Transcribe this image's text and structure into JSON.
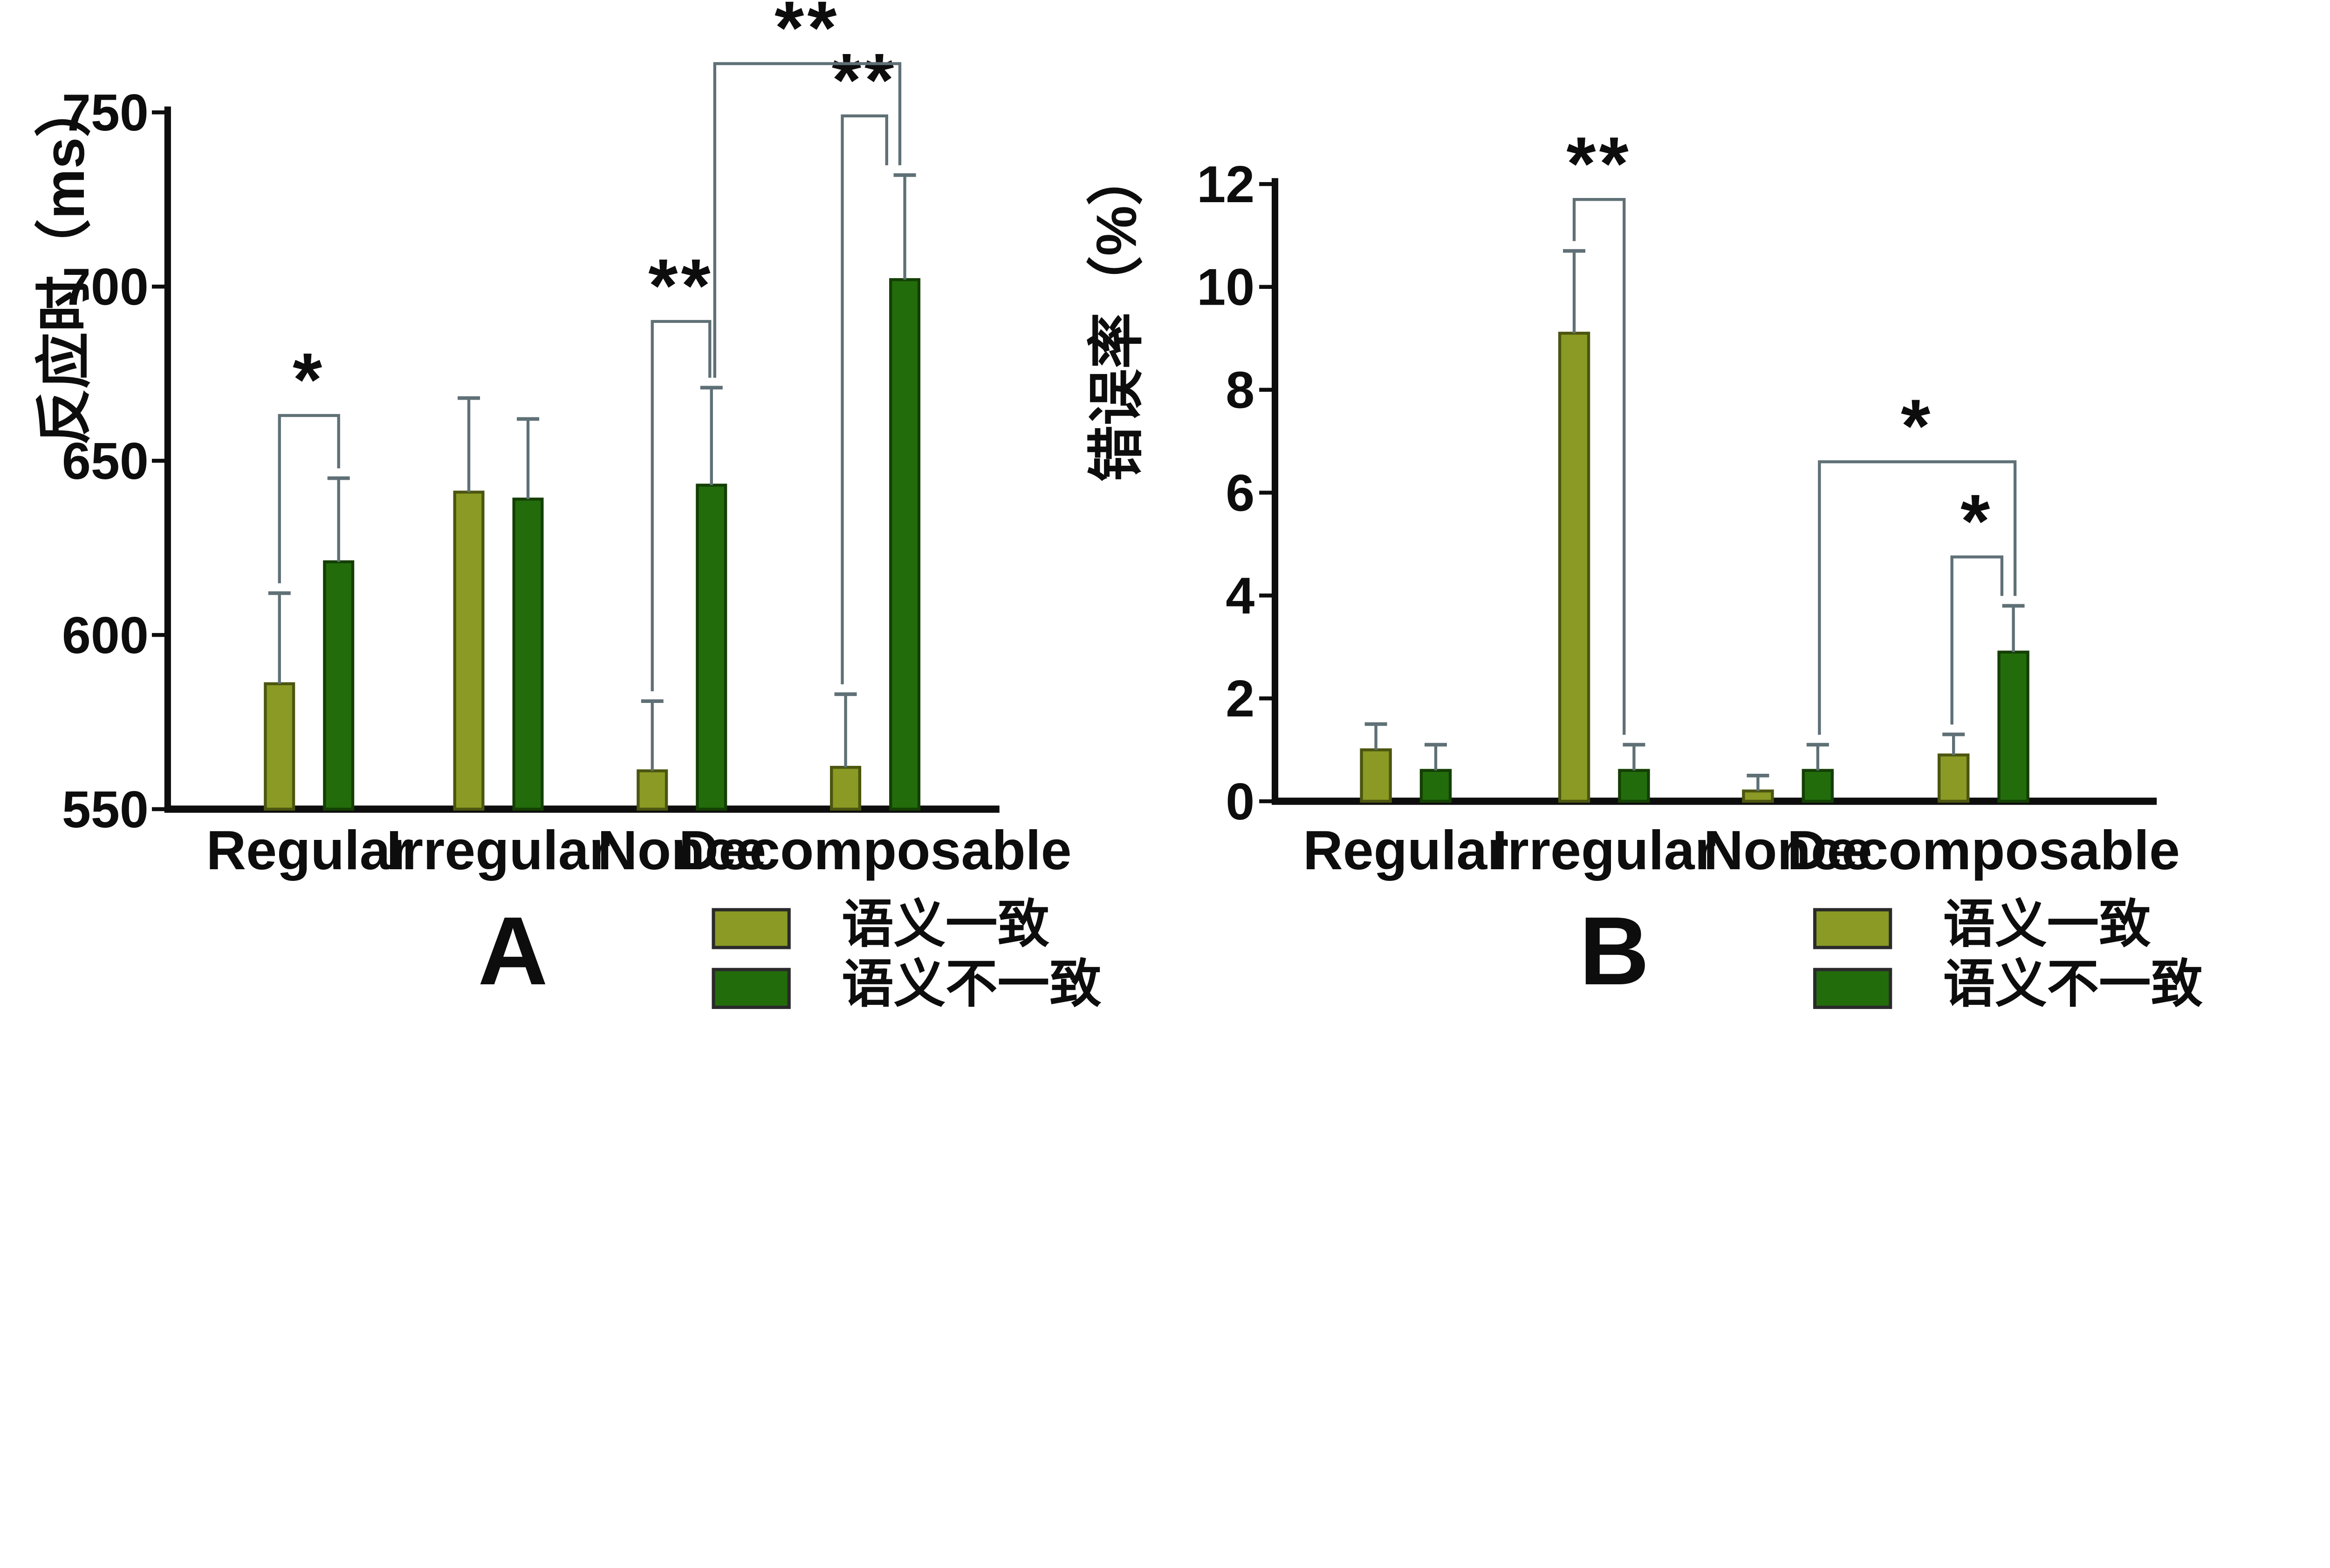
{
  "figure": {
    "background": "#ffffff",
    "legend": {
      "consistent_label": "语义一致",
      "inconsistent_label": "语义不一致"
    },
    "colors": {
      "consistent_fill": "#8a9a24",
      "consistent_border": "#4c5510",
      "inconsistent_fill": "#236c0c",
      "inconsistent_border": "#143f04",
      "error_bar": "#5f7076",
      "axis": "#0d0d0d",
      "text": "#0d0d0d"
    }
  },
  "chart_data": [
    {
      "type": "bar",
      "panel_label": "A",
      "title": "",
      "xlabel": "",
      "ylabel": "反应时（ms）",
      "categories": [
        "Regular",
        "Irregular",
        "Nonce",
        "Decomposable"
      ],
      "series": [
        {
          "name": "语义一致",
          "values": [
            586,
            641,
            561,
            562
          ],
          "errors": [
            26,
            27,
            20,
            21
          ]
        },
        {
          "name": "语义不一致",
          "values": [
            621,
            639,
            643,
            702
          ],
          "errors": [
            24,
            23,
            28,
            30
          ]
        }
      ],
      "ylim": [
        550,
        750
      ],
      "yticks": [
        550,
        600,
        650,
        700,
        750
      ],
      "grid": false,
      "legend_position": "below-right",
      "significance": [
        {
          "label": "*",
          "from": {
            "cat": 0,
            "series": 0
          },
          "to": {
            "cat": 0,
            "series": 1
          },
          "y": 663
        },
        {
          "label": "**",
          "from": {
            "cat": 2,
            "series": 0
          },
          "to": {
            "cat": 2,
            "series": 1
          },
          "y": 690
        },
        {
          "label": "**",
          "from": {
            "cat": 3,
            "series": 0
          },
          "to": {
            "cat": 3,
            "series": 1
          },
          "y": 749
        },
        {
          "label": "**",
          "from": {
            "cat": 2,
            "series": 1
          },
          "to": {
            "cat": 3,
            "series": 1
          },
          "y": 764
        }
      ]
    },
    {
      "type": "bar",
      "panel_label": "B",
      "title": "",
      "xlabel": "",
      "ylabel": "错误率（%）",
      "categories": [
        "Regular",
        "Irregular",
        "Nonce",
        "Decomposable"
      ],
      "series": [
        {
          "name": "语义一致",
          "values": [
            1.0,
            9.1,
            0.2,
            0.9
          ],
          "errors": [
            0.5,
            1.6,
            0.3,
            0.4
          ]
        },
        {
          "name": "语义不一致",
          "values": [
            0.6,
            0.6,
            0.6,
            2.9
          ],
          "errors": [
            0.5,
            0.5,
            0.5,
            0.9
          ]
        }
      ],
      "ylim": [
        0,
        12
      ],
      "yticks": [
        0,
        2,
        4,
        6,
        8,
        10,
        12
      ],
      "grid": false,
      "legend_position": "below-right",
      "significance": [
        {
          "label": "**",
          "from": {
            "cat": 1,
            "series": 0
          },
          "to": {
            "cat": 1,
            "series": 1
          },
          "y": 11.7
        },
        {
          "label": "*",
          "from": {
            "cat": 2,
            "series": 1
          },
          "to": {
            "cat": 3,
            "series": 1
          },
          "y": 6.6
        },
        {
          "label": "*",
          "from": {
            "cat": 3,
            "series": 0
          },
          "to": {
            "cat": 3,
            "series": 1
          },
          "y": 4.75
        }
      ]
    }
  ]
}
